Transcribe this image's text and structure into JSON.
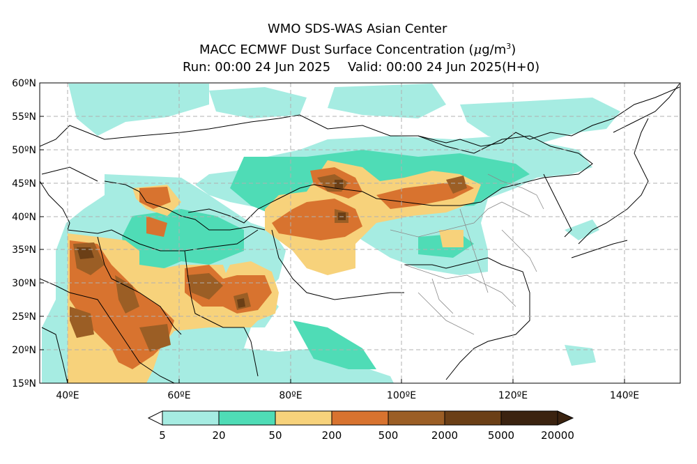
{
  "header": {
    "line1": "WMO SDS-WAS Asian Center",
    "line2_prefix": "MACC ECMWF Dust Surface Concentration (",
    "line2_unit_mu": "μ",
    "line2_unit_g": "g/m",
    "line2_unit_exp": "3",
    "line2_suffix": ")",
    "run": "Run: 00:00 24 Jun 2025",
    "valid": "Valid: 00:00 24 Jun 2025(H+0)"
  },
  "map": {
    "lon_range": [
      35,
      150
    ],
    "lat_range": [
      15,
      60
    ],
    "lat_labels": [
      "15ºN",
      "20ºN",
      "25ºN",
      "30ºN",
      "35ºN",
      "40ºN",
      "45ºN",
      "50ºN",
      "55ºN",
      "60ºN"
    ],
    "lon_labels": [
      "40ºE",
      "60ºE",
      "80ºE",
      "100ºE",
      "120ºE",
      "140ºE"
    ],
    "grid": "dashed"
  },
  "legend": {
    "labels": [
      "5",
      "20",
      "50",
      "200",
      "500",
      "2000",
      "5000",
      "20000"
    ],
    "colors": [
      "#a6ece2",
      "#4fdcb6",
      "#f7d27b",
      "#d8732f",
      "#9b5e25",
      "#6b3f16",
      "#3b2310"
    ],
    "extend_low_color": "#ffffff",
    "extend_high_color": "#3b2310"
  }
}
